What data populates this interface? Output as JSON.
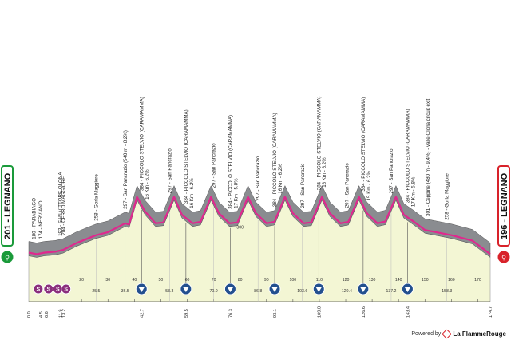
{
  "start": {
    "label": "201 - LEGNANO",
    "color": "#1a9a3a"
  },
  "finish": {
    "label": "196 - LEGNANO",
    "color": "#d8222a"
  },
  "colors": {
    "route": "#e0288e",
    "terrain": "#8a8c90",
    "lower": "#f3f6d4",
    "marker": "#23508f"
  },
  "powered_by": {
    "text": "Powered by",
    "brand": "La FlammeRouge"
  },
  "chart_data": {
    "type": "area",
    "xlabel": "",
    "ylabel": "",
    "xlim": [
      0,
      174.7
    ],
    "ylim": [
      150,
      600
    ],
    "gridline_label": "300",
    "profile": [
      [
        0,
        201
      ],
      [
        3,
        196
      ],
      [
        6,
        201
      ],
      [
        10,
        204
      ],
      [
        13,
        210
      ],
      [
        18,
        232
      ],
      [
        22,
        246
      ],
      [
        25.5,
        258
      ],
      [
        30,
        268
      ],
      [
        36.5,
        297
      ],
      [
        38,
        293
      ],
      [
        41,
        384
      ],
      [
        44,
        336
      ],
      [
        48,
        297
      ],
      [
        51,
        300
      ],
      [
        55,
        384
      ],
      [
        58,
        325
      ],
      [
        62,
        297
      ],
      [
        65,
        302
      ],
      [
        69,
        384
      ],
      [
        72,
        330
      ],
      [
        76,
        297
      ],
      [
        79,
        300
      ],
      [
        83,
        384
      ],
      [
        86,
        330
      ],
      [
        90,
        297
      ],
      [
        93,
        302
      ],
      [
        97,
        384
      ],
      [
        100,
        330
      ],
      [
        104,
        297
      ],
      [
        107,
        300
      ],
      [
        111,
        384
      ],
      [
        114,
        330
      ],
      [
        118,
        297
      ],
      [
        121,
        302
      ],
      [
        125,
        384
      ],
      [
        128,
        330
      ],
      [
        132,
        297
      ],
      [
        135,
        303
      ],
      [
        139,
        384
      ],
      [
        142,
        325
      ],
      [
        146,
        301
      ],
      [
        150,
        275
      ],
      [
        160,
        258
      ],
      [
        168,
        240
      ],
      [
        174.7,
        196
      ]
    ],
    "tick_values": [
      20,
      30,
      40,
      50,
      60,
      70,
      80,
      90,
      100,
      110,
      120,
      130,
      140,
      150,
      160,
      170
    ],
    "tick_labels": [
      "20",
      "30",
      "40",
      "50",
      "60",
      "70",
      "80",
      "90",
      "100",
      "110",
      "120",
      "130",
      "140",
      "150",
      "160",
      "170"
    ],
    "minor_ticks": [
      {
        "km": 25.5,
        "label": "25.5"
      },
      {
        "km": 36.5,
        "label": "36.5"
      },
      {
        "km": 53.3,
        "label": "53.3"
      },
      {
        "km": 70.0,
        "label": "70.0"
      },
      {
        "km": 86.8,
        "label": "86.8"
      },
      {
        "km": 103.6,
        "label": "103.6"
      },
      {
        "km": 120.4,
        "label": "120.4"
      },
      {
        "km": 137.2,
        "label": "137.2"
      },
      {
        "km": 158.3,
        "label": "158.3"
      }
    ],
    "bottom_labels": [
      {
        "km": 0,
        "label": "0.0"
      },
      {
        "km": 4.5,
        "label": "4.5"
      },
      {
        "km": 6.6,
        "label": "6.6"
      },
      {
        "km": 11.9,
        "label": "11.9"
      },
      {
        "km": 13.2,
        "label": "13.2"
      },
      {
        "km": 42.7,
        "label": "42.7"
      },
      {
        "km": 59.5,
        "label": "59.5"
      },
      {
        "km": 76.3,
        "label": "76.3"
      },
      {
        "km": 93.1,
        "label": "93.1"
      },
      {
        "km": 109.8,
        "label": "109.8"
      },
      {
        "km": 126.6,
        "label": "126.6"
      },
      {
        "km": 143.4,
        "label": "143.4"
      },
      {
        "km": 174.7,
        "label": "174.7"
      }
    ],
    "annotations": [
      {
        "km": 2.0,
        "label": "180 - PARABIAGO"
      },
      {
        "km": 4.5,
        "label": "174 - NERVIANO"
      },
      {
        "km": 11.9,
        "label": "193 - SAN VITTORE OLONA"
      },
      {
        "km": 13.2,
        "label": "204 - CERRO MAGGIORE"
      },
      {
        "km": 25.5,
        "label": "258 - Gorla Maggiore"
      },
      {
        "km": 36.5,
        "label": "297 - San Pancrazio (540 m - 8.2%)"
      },
      {
        "km": 42.7,
        "label": "384 - PICCOLO STELVIO (CARAMAMMA)"
      },
      {
        "km": 44.8,
        "label": "16 Km - 6.2%"
      },
      {
        "km": 53.3,
        "label": "297 - San Pancrazio"
      },
      {
        "km": 59.5,
        "label": "384 - PICCOLO STELVIO (CARAMAMMA)"
      },
      {
        "km": 61.6,
        "label": "16 Km - 6.2%"
      },
      {
        "km": 70.0,
        "label": "297 - San Pancrazio"
      },
      {
        "km": 76.3,
        "label": "384 - PICCOLO STELVIO (CARAMAMMA)"
      },
      {
        "km": 78.4,
        "label": "17 Km - 5.8%"
      },
      {
        "km": 86.8,
        "label": "297 - San Pancrazio"
      },
      {
        "km": 93.1,
        "label": "384 - PICCOLO STELVIO (CARAMAMMA)"
      },
      {
        "km": 95.2,
        "label": "16 Km - 6.2%"
      },
      {
        "km": 103.6,
        "label": "297 - San Pancrazio"
      },
      {
        "km": 109.8,
        "label": "384 - PICCOLO STELVIO (CARAMAMMA)"
      },
      {
        "km": 111.9,
        "label": "16 Km - 6.2%"
      },
      {
        "km": 120.4,
        "label": "297 - San Pancrazio"
      },
      {
        "km": 126.6,
        "label": "384 - PICCOLO STELVIO (CARAMAMMA)"
      },
      {
        "km": 128.7,
        "label": "15 Km - 6.2%"
      },
      {
        "km": 137.2,
        "label": "297 - San Pancrazio"
      },
      {
        "km": 143.4,
        "label": "384 - PICCOLO STELVIO (CARAMAMMA)"
      },
      {
        "km": 145.5,
        "label": "17 Km - 5.8%"
      },
      {
        "km": 151.2,
        "label": "301 - Ceppine (480 m - 9.4%) - valle Olona circuit exit"
      },
      {
        "km": 158.3,
        "label": "258 - Gorla Maggiore"
      }
    ],
    "climb_markers": [
      42.7,
      59.5,
      76.3,
      93.1,
      109.8,
      126.6,
      143.4
    ],
    "sprint_markers": [
      4.5,
      6.6,
      11.9,
      13.2
    ],
    "sprint_symbol": "S"
  }
}
